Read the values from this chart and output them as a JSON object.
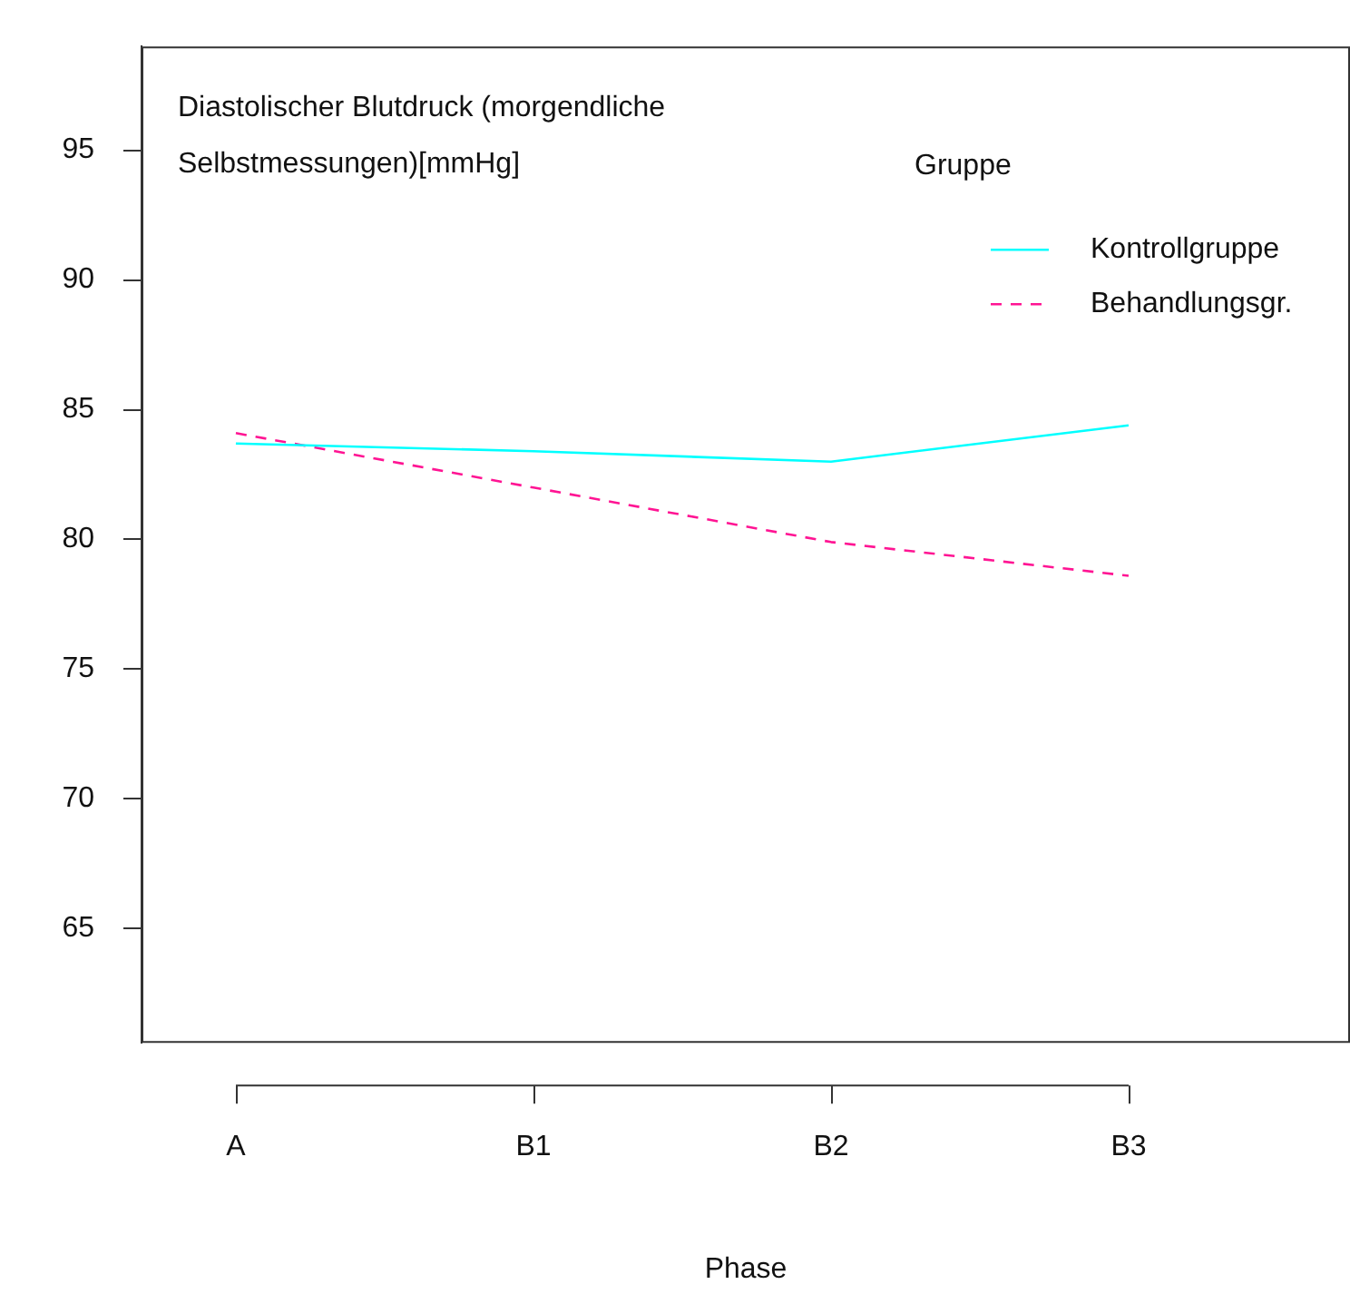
{
  "chart_data": {
    "type": "line",
    "title": "Diastolischer Blutdruck (morgendliche Selbstmessungen)[mmHg]",
    "xlabel": "Phase",
    "legend_title": "Gruppe",
    "legend": "top right",
    "categories": [
      "A",
      "B1",
      "B2",
      "B3"
    ],
    "series": [
      {
        "name": "Kontrollgruppe",
        "color": "#00ffff",
        "line_style": "solid",
        "values": [
          83.7,
          83.4,
          83.0,
          84.4
        ]
      },
      {
        "name": "Behandlungsgr.",
        "color": "#ff1493",
        "line_style": "dashed",
        "values": [
          84.1,
          82.0,
          79.9,
          78.6
        ]
      }
    ],
    "ylim": [
      60.6,
      99
    ],
    "yticks": [
      65,
      70,
      75,
      80,
      85,
      90,
      95
    ],
    "grid": false,
    "marker": "none"
  }
}
